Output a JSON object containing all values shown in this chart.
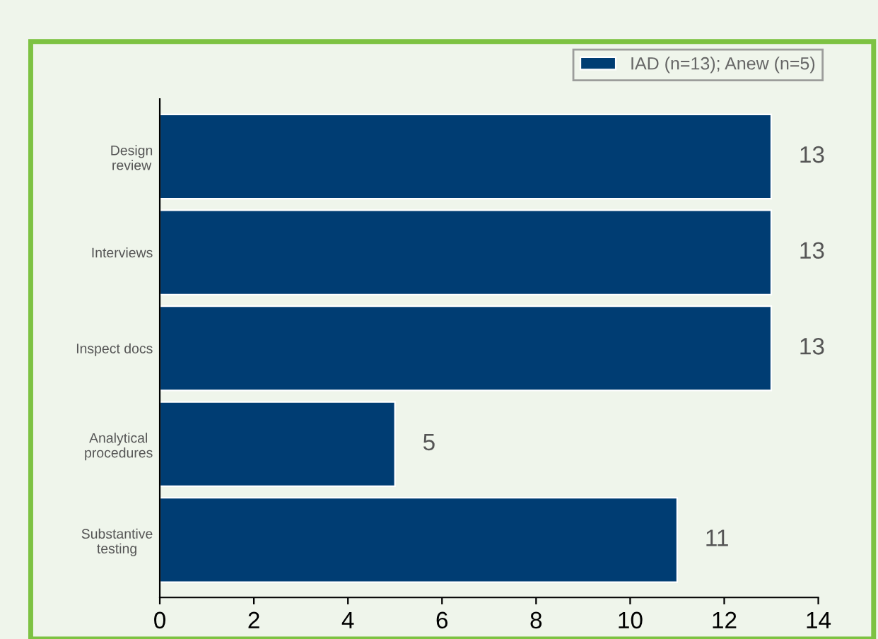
{
  "chart_data": {
    "type": "bar",
    "orientation": "horizontal",
    "categories": [
      "Design\nreview",
      "Interviews",
      "Inspect docs",
      "Analytical\nprocedures",
      "Substantive\ntesting"
    ],
    "series": [
      {
        "name": "IAD (n=13); Anew (n=5)",
        "color": "#003d73",
        "values": [
          13,
          13,
          13,
          5,
          11
        ]
      }
    ],
    "xlim": [
      0,
      14
    ],
    "xticks": [
      0,
      2,
      4,
      6,
      8,
      10,
      12,
      14
    ],
    "data_labels": true,
    "legend": "top right",
    "grid": false
  }
}
